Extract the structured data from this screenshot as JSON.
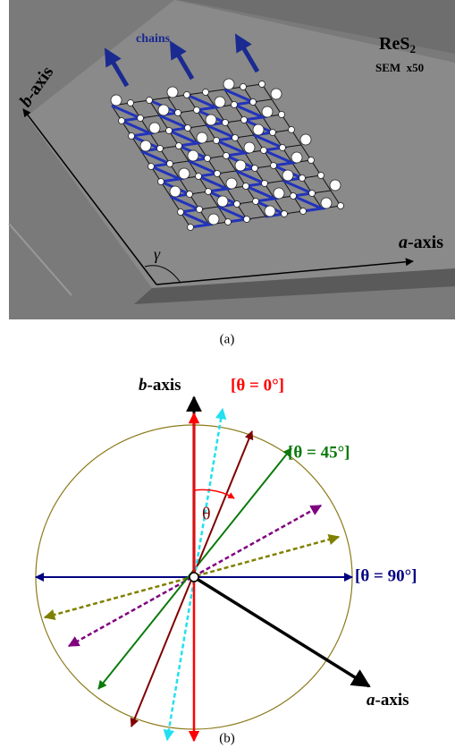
{
  "panel_a": {
    "chains": "chains",
    "compound": {
      "base": "ReS",
      "subscript": "2"
    },
    "magnification": "SEM  x50",
    "b_axis": {
      "italic": "b",
      "rest": "-axis"
    },
    "a_axis": {
      "italic": "a",
      "rest": "-axis"
    },
    "angle": "γ",
    "caption": "(a)"
  },
  "panel_b": {
    "b_axis": {
      "italic": "b",
      "rest": "-axis"
    },
    "a_axis": {
      "italic": "a",
      "rest": "-axis"
    },
    "theta0": "[θ = 0°]",
    "theta45": "[θ = 45°]",
    "theta90": "[θ = 90°]",
    "theta": "θ",
    "caption": "(b)"
  }
}
